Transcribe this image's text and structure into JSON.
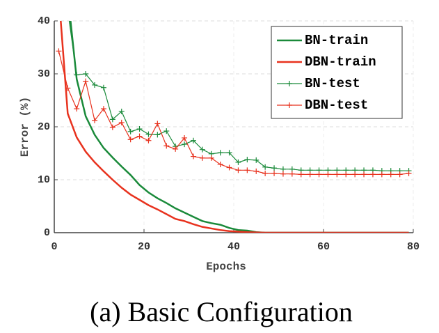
{
  "chart_data": {
    "type": "line",
    "x": [
      1,
      3,
      5,
      7,
      9,
      11,
      13,
      15,
      17,
      19,
      21,
      23,
      25,
      27,
      29,
      31,
      33,
      35,
      37,
      39,
      41,
      43,
      45,
      47,
      49,
      51,
      53,
      55,
      57,
      59,
      61,
      63,
      65,
      67,
      69,
      71,
      73,
      75,
      77,
      79
    ],
    "series": [
      {
        "name": "BN-train",
        "color": "#1a8a3a",
        "markers": false,
        "values": [
          60,
          45,
          29,
          22,
          18.5,
          16,
          14.2,
          12.5,
          10.9,
          9,
          7.6,
          6.5,
          5.6,
          4.6,
          3.8,
          3,
          2.2,
          1.8,
          1.5,
          0.9,
          0.5,
          0.4,
          0.1,
          0,
          0,
          0,
          0,
          0,
          0,
          0,
          0,
          0,
          0,
          0,
          0,
          0,
          0,
          0,
          0,
          0
        ]
      },
      {
        "name": "DBN-train",
        "color": "#e8321e",
        "markers": false,
        "values": [
          45,
          22.5,
          18,
          15.3,
          13.3,
          11.6,
          10,
          8.5,
          7.2,
          6.2,
          5.2,
          4.4,
          3.5,
          2.6,
          2.2,
          1.6,
          1.1,
          0.8,
          0.5,
          0.3,
          0.2,
          0.1,
          0.05,
          0,
          0,
          0,
          0,
          0,
          0,
          0,
          0,
          0,
          0,
          0,
          0,
          0,
          0,
          0,
          0,
          0
        ]
      },
      {
        "name": "BN-test",
        "color": "#1a8a3a",
        "markers": true,
        "values": [
          50,
          42,
          29.8,
          30,
          27.9,
          27.4,
          21.4,
          22.9,
          19.1,
          19.6,
          18.6,
          18.5,
          19.2,
          16.3,
          16.7,
          17.4,
          15.7,
          14.9,
          15.1,
          15.1,
          13.3,
          13.8,
          13.7,
          12.4,
          12.2,
          12,
          12,
          11.8,
          11.8,
          11.8,
          11.8,
          11.8,
          11.8,
          11.8,
          11.8,
          11.8,
          11.7,
          11.7,
          11.7,
          11.7
        ]
      },
      {
        "name": "DBN-test",
        "color": "#e8321e",
        "markers": true,
        "values": [
          34.3,
          27.3,
          23.4,
          28.6,
          21.2,
          23.4,
          19.9,
          20.8,
          17.6,
          18.2,
          17.4,
          20.6,
          16.4,
          15.8,
          17.9,
          14.4,
          14.1,
          14.1,
          12.9,
          12.3,
          11.8,
          11.8,
          11.6,
          11.2,
          11.2,
          11.1,
          11.1,
          11,
          11,
          11,
          11,
          11,
          11,
          11,
          11,
          11,
          11,
          11,
          11,
          11.2
        ]
      }
    ],
    "xlim": [
      0,
      80
    ],
    "ylim": [
      0,
      40
    ],
    "xticks": [
      0,
      20,
      40,
      60,
      80
    ],
    "yticks": [
      0,
      10,
      20,
      30,
      40
    ],
    "xlabel": "Epochs",
    "ylabel": "Error (%)",
    "grid": true,
    "legend": "upper right"
  },
  "caption": "(a) Basic Configuration"
}
